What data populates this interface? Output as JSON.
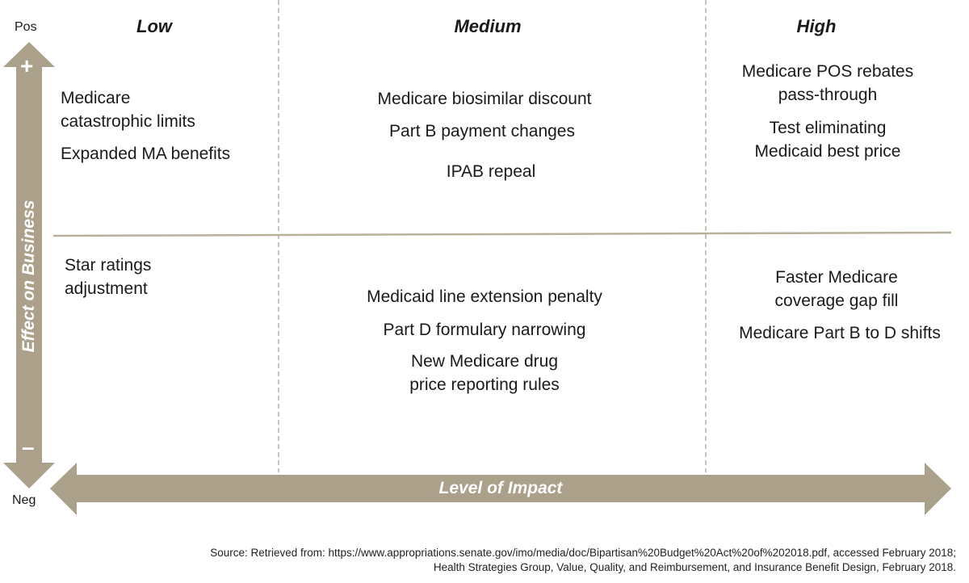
{
  "colors": {
    "arrow": "#aba08a",
    "divider": "#b9b09c",
    "text": "#1a1a1a"
  },
  "axes": {
    "y_label": "Effect on Business",
    "y_top": "Pos",
    "y_bottom": "Neg",
    "y_plus": "+",
    "y_minus": "–",
    "x_label": "Level of Impact"
  },
  "columns": [
    "Low",
    "Medium",
    "High"
  ],
  "quadrants": {
    "low_pos": [
      "Medicare\ncatastrophic limits",
      "Expanded MA benefits"
    ],
    "medium_pos": [
      "Medicare biosimilar discount",
      "Part B payment changes",
      "IPAB repeal"
    ],
    "high_pos": [
      "Medicare POS rebates\npass-through",
      "Test eliminating\nMedicaid best price"
    ],
    "low_neg": [
      "Star ratings\nadjustment"
    ],
    "medium_neg": [
      "Medicaid line extension penalty",
      "Part D formulary narrowing",
      "New Medicare drug\nprice reporting rules"
    ],
    "high_neg": [
      "Faster Medicare\ncoverage gap fill",
      "Medicare Part B to D shifts"
    ]
  },
  "source": [
    "Source: Retrieved from: https://www.appropriations.senate.gov/imo/media/doc/Bipartisan%20Budget%20Act%20of%202018.pdf, accessed February 2018;",
    "Health Strategies Group, Value, Quality, and Reimbursement, and Insurance Benefit Design, February 2018."
  ]
}
